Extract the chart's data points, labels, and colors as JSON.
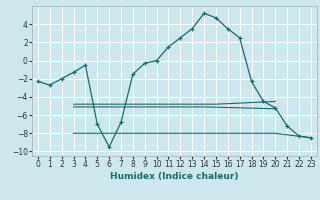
{
  "xlabel": "Humidex (Indice chaleur)",
  "background_color": "#cce8ee",
  "grid_color": "#ffffff",
  "line_color": "#1a6b6b",
  "xlim": [
    -0.5,
    23.5
  ],
  "ylim": [
    -10.5,
    6.0
  ],
  "xticks": [
    0,
    1,
    2,
    3,
    4,
    5,
    6,
    7,
    8,
    9,
    10,
    11,
    12,
    13,
    14,
    15,
    16,
    17,
    18,
    19,
    20,
    21,
    22,
    23
  ],
  "yticks": [
    -10,
    -8,
    -6,
    -4,
    -2,
    0,
    2,
    4
  ],
  "line1_x": [
    0,
    1,
    2,
    3,
    4,
    5,
    6,
    7,
    8,
    9,
    10,
    11,
    12,
    13,
    14,
    15,
    16,
    17,
    18,
    19,
    20,
    21,
    22,
    23
  ],
  "line1_y": [
    -2.3,
    -2.7,
    -2.0,
    -1.3,
    -0.5,
    -7.0,
    -9.5,
    -6.8,
    -1.5,
    -0.3,
    0.0,
    1.5,
    2.5,
    3.5,
    5.2,
    4.7,
    3.5,
    2.5,
    -2.3,
    -4.5,
    -5.2,
    -7.2,
    -8.3,
    -8.5
  ],
  "line2_x": [
    3,
    15,
    20
  ],
  "line2_y": [
    -4.8,
    -4.8,
    -4.5
  ],
  "line3_x": [
    3,
    14,
    20
  ],
  "line3_y": [
    -5.1,
    -5.1,
    -5.3
  ],
  "line4_x": [
    3,
    20,
    23
  ],
  "line4_y": [
    -8.0,
    -8.0,
    -8.5
  ],
  "xlabel_fontsize": 6.5,
  "tick_fontsize": 5.5
}
